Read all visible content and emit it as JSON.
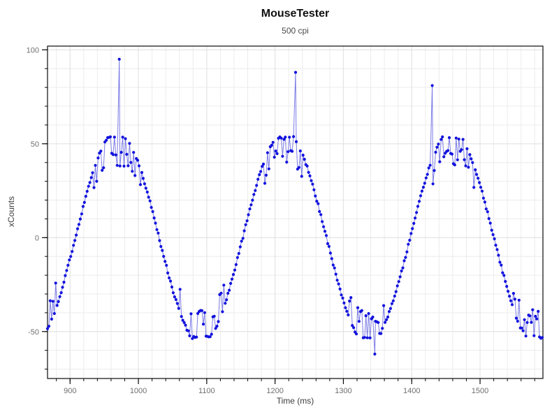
{
  "chart_data": {
    "type": "scatter-line",
    "title": "MouseTester",
    "subtitle": "500 cpi",
    "xlabel": "Time (ms)",
    "ylabel": "xCounts",
    "xlim": [
      867,
      1592
    ],
    "ylim": [
      -75,
      102
    ],
    "x_major_ticks": [
      900,
      1000,
      1100,
      1200,
      1300,
      1400,
      1500
    ],
    "x_minor_step": 20,
    "y_major_ticks": [
      -50,
      0,
      50,
      100
    ],
    "y_minor_step": 10,
    "grid": true,
    "legend": false,
    "colors": {
      "marker": "#1212dd",
      "line": "rgba(45,45,215,0.62)",
      "grid_minor": "#ececec",
      "grid_major": "#e2e2e2",
      "axis": "#0a0a0a",
      "tick_label": "#6f6f6f"
    },
    "waveform_model": {
      "description": "Sinusoidal x-displacement counts per report from back-and-forth mouse motion; flat-topped peaks near +53 and troughs near -53 with frequent dip noise near the extremes and a few isolated outlier spikes",
      "sample_interval_ms": 2,
      "t_start_ms": 867,
      "t_end_ms": 1591,
      "amplitude": 56.5,
      "clip": 53,
      "period_ms": 245,
      "peak_time_ms": 969,
      "jitter": 1.6,
      "plateau_dip_probability": 0.55,
      "plateau_dip_range": [
        6,
        15
      ],
      "shoulder_threshold": 36,
      "shoulder_dip_probability": 0.28,
      "shoulder_dip_range": [
        7,
        14
      ],
      "seed": 20,
      "peak_times_ms": [
        969,
        1214,
        1459
      ],
      "trough_times_ms": [
        1091,
        1336,
        1581
      ],
      "peak_value": 53,
      "trough_value": -53
    },
    "outlier_spikes": [
      {
        "t_ms": 972,
        "value": 95
      },
      {
        "t_ms": 1230,
        "value": 88
      },
      {
        "t_ms": 1346,
        "value": -62
      },
      {
        "t_ms": 1430,
        "value": 81
      }
    ]
  }
}
